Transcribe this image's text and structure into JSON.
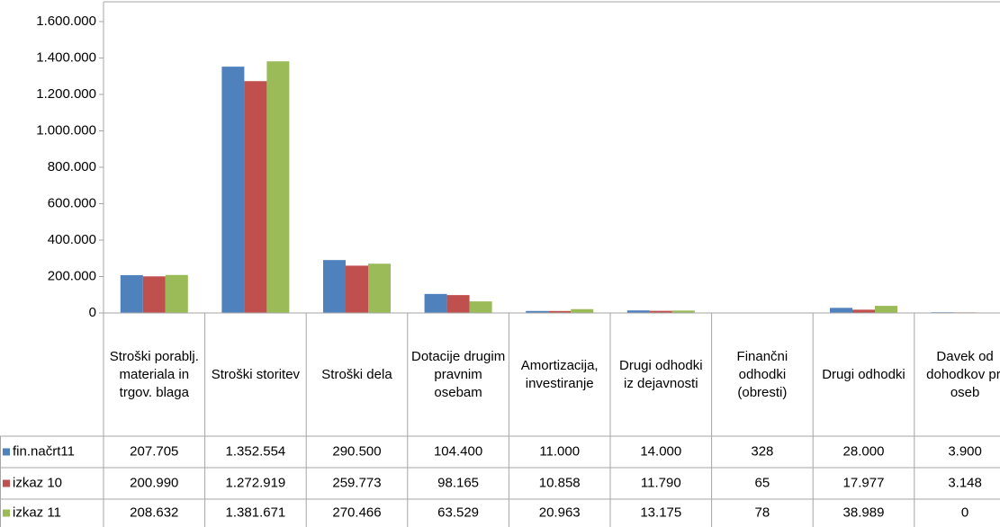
{
  "chart_data": {
    "type": "bar",
    "categories": [
      "Stroški porablj. materiala in trgov. blaga",
      "Stroški storitev",
      "Stroški dela",
      "Dotacije drugim pravnim osebam",
      "Amortizacija, investiranje",
      "Drugi odhodki iz dejavnosti",
      "Finančni odhodki (obresti)",
      "Drugi odhodki",
      "Davek od dohodkov pr. oseb"
    ],
    "series": [
      {
        "name": "fin.načrt11",
        "color": "#4f81bd",
        "values": [
          207705,
          1352554,
          290500,
          104400,
          11000,
          14000,
          328,
          28000,
          3900
        ],
        "value_labels": [
          "207.705",
          "1.352.554",
          "290.500",
          "104.400",
          "11.000",
          "14.000",
          "328",
          "28.000",
          "3.900"
        ]
      },
      {
        "name": "izkaz 10",
        "color": "#c0504d",
        "values": [
          200990,
          1272919,
          259773,
          98165,
          10858,
          11790,
          65,
          17977,
          3148
        ],
        "value_labels": [
          "200.990",
          "1.272.919",
          "259.773",
          "98.165",
          "10.858",
          "11.790",
          "65",
          "17.977",
          "3.148"
        ]
      },
      {
        "name": "izkaz 11",
        "color": "#9bbb59",
        "values": [
          208632,
          1381671,
          270466,
          63529,
          20963,
          13175,
          78,
          38989,
          0
        ],
        "value_labels": [
          "208.632",
          "1.381.671",
          "270.466",
          "63.529",
          "20.963",
          "13.175",
          "78",
          "38.989",
          "0"
        ]
      }
    ],
    "ylim": [
      0,
      1600000
    ],
    "yticks": [
      {
        "value": 0,
        "label": "0"
      },
      {
        "value": 200000,
        "label": "200.000"
      },
      {
        "value": 400000,
        "label": "400.000"
      },
      {
        "value": 600000,
        "label": "600.000"
      },
      {
        "value": 800000,
        "label": "800.000"
      },
      {
        "value": 1000000,
        "label": "1.000.000"
      },
      {
        "value": 1200000,
        "label": "1.200.000"
      },
      {
        "value": 1400000,
        "label": "1.400.000"
      },
      {
        "value": 1600000,
        "label": "1.600.000"
      }
    ],
    "grid": false
  }
}
